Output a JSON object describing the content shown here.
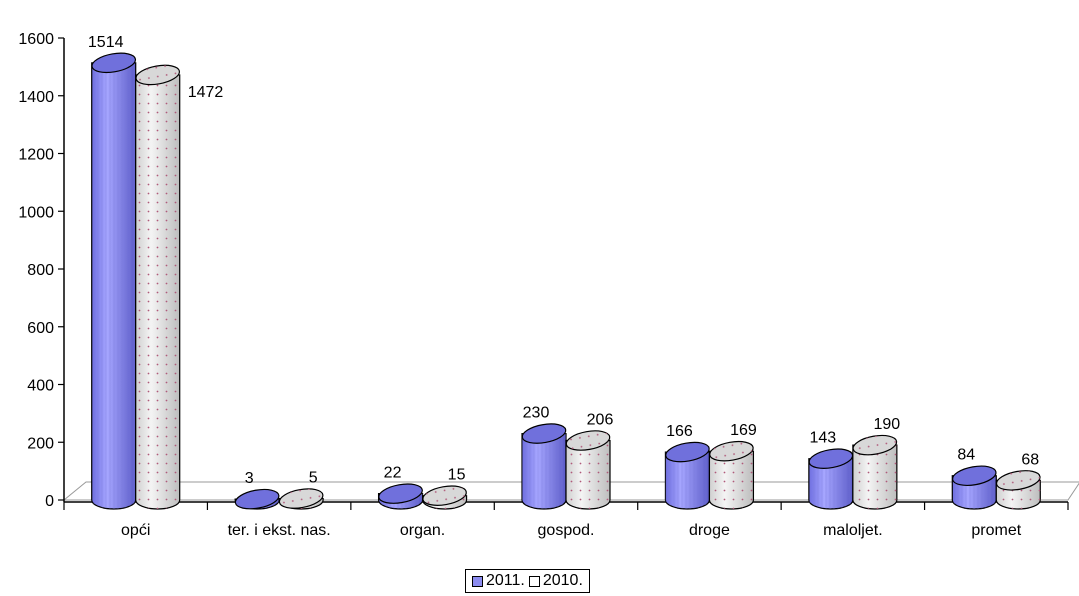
{
  "chart_data": {
    "type": "bar",
    "categories": [
      "opći",
      "ter. i ekst. nas.",
      "organ.",
      "gospod.",
      "droge",
      "maloljet.",
      "promet"
    ],
    "series": [
      {
        "name": "2011.",
        "values": [
          1514,
          3,
          22,
          230,
          166,
          143,
          84
        ],
        "color": "#8c8cf0"
      },
      {
        "name": "2010.",
        "values": [
          1472,
          5,
          15,
          206,
          169,
          190,
          68
        ],
        "color": "#e6e6e6"
      }
    ],
    "ylim": [
      0,
      1600
    ],
    "yticks": [
      "0",
      "200",
      "400",
      "600",
      "800",
      "1000",
      "1200",
      "1400",
      "1600"
    ],
    "grid": false,
    "legend": "bottom-center"
  }
}
